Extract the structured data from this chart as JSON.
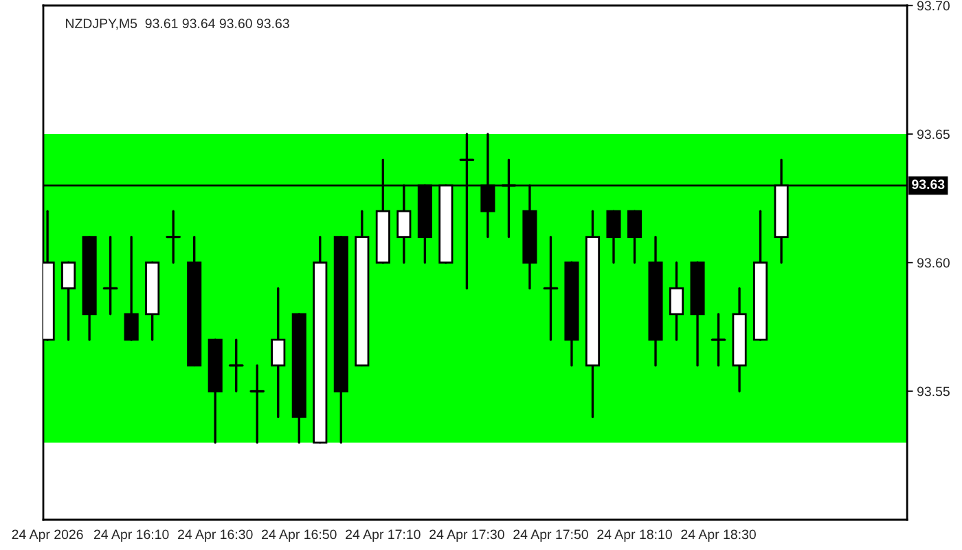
{
  "chart_data": {
    "type": "candlestick",
    "title": "NZDJPY,M5  93.61 93.64 93.60 93.63",
    "x": [
      "2026-04-24T15:50",
      "2026-04-24T15:55",
      "2026-04-24T16:00",
      "2026-04-24T16:05",
      "2026-04-24T16:10",
      "2026-04-24T16:15",
      "2026-04-24T16:20",
      "2026-04-24T16:25",
      "2026-04-24T16:30",
      "2026-04-24T16:35",
      "2026-04-24T16:40",
      "2026-04-24T16:45",
      "2026-04-24T16:50",
      "2026-04-24T16:55",
      "2026-04-24T17:00",
      "2026-04-24T17:05",
      "2026-04-24T17:10",
      "2026-04-24T17:15",
      "2026-04-24T17:20",
      "2026-04-24T17:25",
      "2026-04-24T17:30",
      "2026-04-24T17:35",
      "2026-04-24T17:40",
      "2026-04-24T17:45",
      "2026-04-24T17:50",
      "2026-04-24T17:55",
      "2026-04-24T18:00",
      "2026-04-24T18:05",
      "2026-04-24T18:10",
      "2026-04-24T18:15",
      "2026-04-24T18:20",
      "2026-04-24T18:25",
      "2026-04-24T18:30",
      "2026-04-24T18:35",
      "2026-04-24T18:40",
      "2026-04-24T18:45"
    ],
    "ohlc": [
      [
        93.57,
        93.62,
        93.57,
        93.6
      ],
      [
        93.59,
        93.6,
        93.57,
        93.6
      ],
      [
        93.61,
        93.61,
        93.57,
        93.58
      ],
      [
        93.59,
        93.61,
        93.58,
        93.59
      ],
      [
        93.58,
        93.61,
        93.57,
        93.57
      ],
      [
        93.58,
        93.6,
        93.57,
        93.6
      ],
      [
        93.61,
        93.62,
        93.6,
        93.61
      ],
      [
        93.6,
        93.61,
        93.56,
        93.56
      ],
      [
        93.57,
        93.57,
        93.53,
        93.55
      ],
      [
        93.56,
        93.57,
        93.55,
        93.56
      ],
      [
        93.55,
        93.56,
        93.53,
        93.55
      ],
      [
        93.56,
        93.59,
        93.54,
        93.57
      ],
      [
        93.58,
        93.58,
        93.53,
        93.54
      ],
      [
        93.53,
        93.61,
        93.53,
        93.6
      ],
      [
        93.61,
        93.61,
        93.53,
        93.55
      ],
      [
        93.56,
        93.62,
        93.56,
        93.61
      ],
      [
        93.6,
        93.64,
        93.6,
        93.62
      ],
      [
        93.61,
        93.63,
        93.6,
        93.62
      ],
      [
        93.63,
        93.63,
        93.6,
        93.61
      ],
      [
        93.6,
        93.63,
        93.6,
        93.63
      ],
      [
        93.64,
        93.65,
        93.59,
        93.64
      ],
      [
        93.63,
        93.65,
        93.61,
        93.62
      ],
      [
        93.63,
        93.64,
        93.61,
        93.63
      ],
      [
        93.62,
        93.63,
        93.59,
        93.6
      ],
      [
        93.59,
        93.61,
        93.57,
        93.59
      ],
      [
        93.6,
        93.6,
        93.56,
        93.57
      ],
      [
        93.56,
        93.62,
        93.54,
        93.61
      ],
      [
        93.62,
        93.62,
        93.6,
        93.61
      ],
      [
        93.62,
        93.62,
        93.6,
        93.61
      ],
      [
        93.6,
        93.61,
        93.56,
        93.57
      ],
      [
        93.58,
        93.6,
        93.57,
        93.59
      ],
      [
        93.6,
        93.6,
        93.56,
        93.58
      ],
      [
        93.57,
        93.58,
        93.56,
        93.57
      ],
      [
        93.56,
        93.59,
        93.55,
        93.58
      ],
      [
        93.57,
        93.62,
        93.57,
        93.6
      ],
      [
        93.61,
        93.64,
        93.6,
        93.63
      ]
    ],
    "xlim": [
      "2026-04-24T15:49",
      "2026-04-24T19:15"
    ],
    "xticks": [
      {
        "value": "2026-04-24T15:50",
        "label": "24 Apr 2026"
      },
      {
        "value": "2026-04-24T16:10",
        "label": "24 Apr 16:10"
      },
      {
        "value": "2026-04-24T16:30",
        "label": "24 Apr 16:30"
      },
      {
        "value": "2026-04-24T16:50",
        "label": "24 Apr 16:50"
      },
      {
        "value": "2026-04-24T17:10",
        "label": "24 Apr 17:10"
      },
      {
        "value": "2026-04-24T17:30",
        "label": "24 Apr 17:30"
      },
      {
        "value": "2026-04-24T17:50",
        "label": "24 Apr 17:50"
      },
      {
        "value": "2026-04-24T18:10",
        "label": "24 Apr 18:10"
      },
      {
        "value": "2026-04-24T18:30",
        "label": "24 Apr 18:30"
      }
    ],
    "ylim": [
      93.5,
      93.7
    ],
    "yticks": [
      93.55,
      {
        "value": 93.6,
        "label": "93.60"
      },
      93.65,
      {
        "value": 93.7,
        "label": "93.70"
      }
    ],
    "bands": [
      {
        "axis": "y",
        "from": 93.53,
        "to": 93.65,
        "label": null,
        "color": "#00ff00"
      }
    ],
    "ref_lines": [
      {
        "axis": "y",
        "value": 93.63,
        "label": "93.63",
        "color": "#000000"
      }
    ],
    "grid": false
  }
}
